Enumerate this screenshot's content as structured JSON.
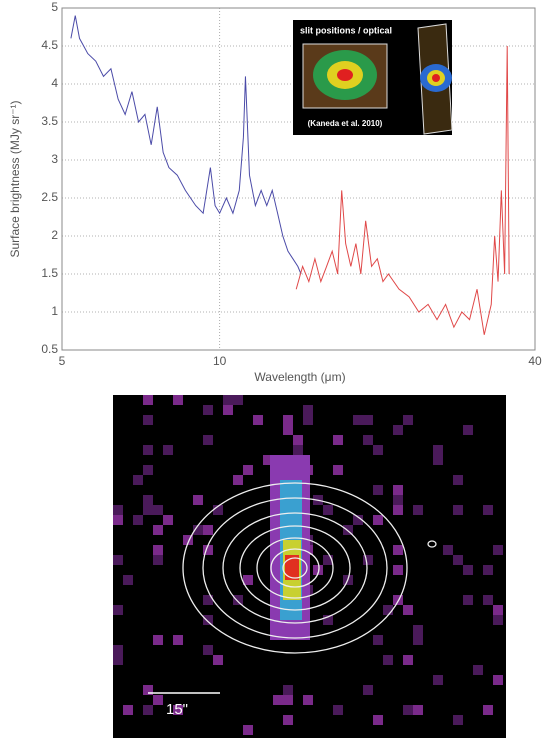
{
  "chart_data": {
    "type": "line",
    "x_label": "Wavelength (μm)",
    "y_label": "Surface brightness (MJy sr⁻¹)",
    "xlog": true,
    "xlim": [
      5,
      40
    ],
    "xticks": [
      5,
      10,
      40
    ],
    "ylim": [
      0.5,
      5
    ],
    "yticks": [
      0.5,
      1,
      1.5,
      2,
      2.5,
      3,
      3.5,
      4,
      4.5,
      5
    ],
    "grid": true,
    "series": [
      {
        "color": "#4b4ba8",
        "x": [
          5.2,
          5.3,
          5.4,
          5.5,
          5.6,
          5.8,
          6.0,
          6.2,
          6.4,
          6.6,
          6.8,
          7.0,
          7.2,
          7.4,
          7.6,
          7.8,
          8.0,
          8.3,
          8.6,
          9.0,
          9.3,
          9.6,
          9.8,
          10.0,
          10.3,
          10.6,
          10.9,
          11.1,
          11.2,
          11.4,
          11.7,
          12.0,
          12.3,
          12.6,
          12.9,
          13.2,
          13.5,
          13.8,
          14.1,
          14.3
        ],
        "values": [
          4.6,
          4.9,
          4.6,
          4.5,
          4.4,
          4.3,
          4.1,
          4.2,
          3.8,
          3.6,
          3.9,
          3.5,
          3.6,
          3.2,
          3.7,
          3.1,
          2.9,
          2.8,
          2.6,
          2.4,
          2.3,
          2.9,
          2.4,
          2.3,
          2.5,
          2.3,
          2.6,
          3.3,
          4.1,
          2.8,
          2.4,
          2.6,
          2.4,
          2.6,
          2.3,
          2.0,
          1.8,
          1.7,
          1.6,
          1.5
        ]
      },
      {
        "color": "#e04848",
        "x": [
          14.0,
          14.4,
          14.8,
          15.2,
          15.6,
          16.0,
          16.4,
          16.8,
          17.1,
          17.4,
          17.8,
          18.2,
          18.6,
          19.0,
          19.5,
          20.0,
          20.5,
          21.0,
          22,
          23,
          24,
          25,
          26,
          27,
          28,
          29,
          30,
          31,
          32,
          33,
          33.5,
          34,
          34.5,
          35,
          35.4,
          35.7
        ],
        "values": [
          1.3,
          1.6,
          1.4,
          1.7,
          1.4,
          1.6,
          1.8,
          1.5,
          2.6,
          1.9,
          1.6,
          1.9,
          1.5,
          2.2,
          1.6,
          1.7,
          1.4,
          1.5,
          1.3,
          1.2,
          1.0,
          1.1,
          0.9,
          1.1,
          0.8,
          1.0,
          0.9,
          1.3,
          0.7,
          1.1,
          2.0,
          1.4,
          2.6,
          1.5,
          4.5,
          1.5
        ]
      }
    ]
  },
  "inset": {
    "title": "slit positions / optical",
    "credit": "(Kaneda et al. 2010)"
  },
  "image": {
    "scale_label": "15\""
  }
}
